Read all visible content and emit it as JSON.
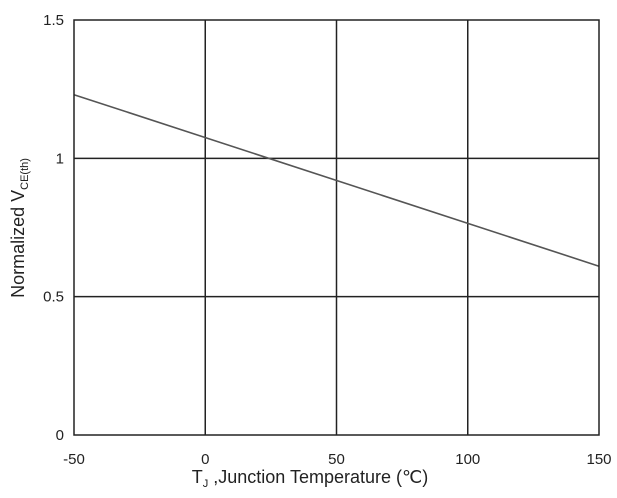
{
  "chart_data": {
    "type": "line",
    "xlabel": "T J ,Junction Temperature (℃)",
    "xlabel_prefix": "T",
    "xlabel_subscript": "J",
    "xlabel_suffix": " ,Junction Temperature (℃)",
    "ylabel": "Normalized VCE(th)",
    "ylabel_prefix": "Normalized V",
    "ylabel_subscript": "CE(th)",
    "xlim": [
      -50,
      150
    ],
    "ylim": [
      0,
      1.5
    ],
    "x_ticks": [
      -50,
      0,
      50,
      100,
      150
    ],
    "x_tick_labels": [
      "-50",
      "0",
      "50",
      "100",
      "150"
    ],
    "y_ticks": [
      0,
      0.5,
      1,
      1.5
    ],
    "y_tick_labels": [
      "0",
      "0.5",
      "1",
      "1.5"
    ],
    "grid": true,
    "series": [
      {
        "x": [
          -50,
          150
        ],
        "y": [
          1.23,
          0.61
        ]
      }
    ],
    "colors": {
      "line": "#555555",
      "grid": "#222222",
      "frame": "#222222"
    }
  }
}
